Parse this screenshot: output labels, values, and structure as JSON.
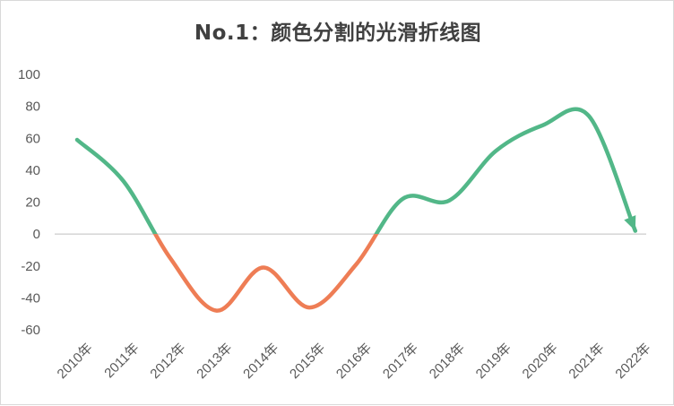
{
  "chart_data": {
    "type": "line",
    "title": "No.1：颜色分割的光滑折线图",
    "categories": [
      "2010年",
      "2011年",
      "2012年",
      "2013年",
      "2014年",
      "2015年",
      "2016年",
      "2017年",
      "2018年",
      "2019年",
      "2020年",
      "2021年",
      "2022年"
    ],
    "series": [
      {
        "values": [
          59,
          33,
          -15,
          -48,
          -21,
          -46,
          -19,
          22,
          21,
          52,
          68,
          74,
          2
        ]
      }
    ],
    "ylim": [
      -60,
      100
    ],
    "yticks": [
      -60,
      -40,
      -20,
      0,
      20,
      40,
      60,
      80,
      100
    ],
    "grid": false,
    "smooth": true,
    "end_marker": "arrow",
    "colors": {
      "positive": "#52b788",
      "negative": "#ee7d55",
      "axis": "#bfbfbf"
    }
  }
}
